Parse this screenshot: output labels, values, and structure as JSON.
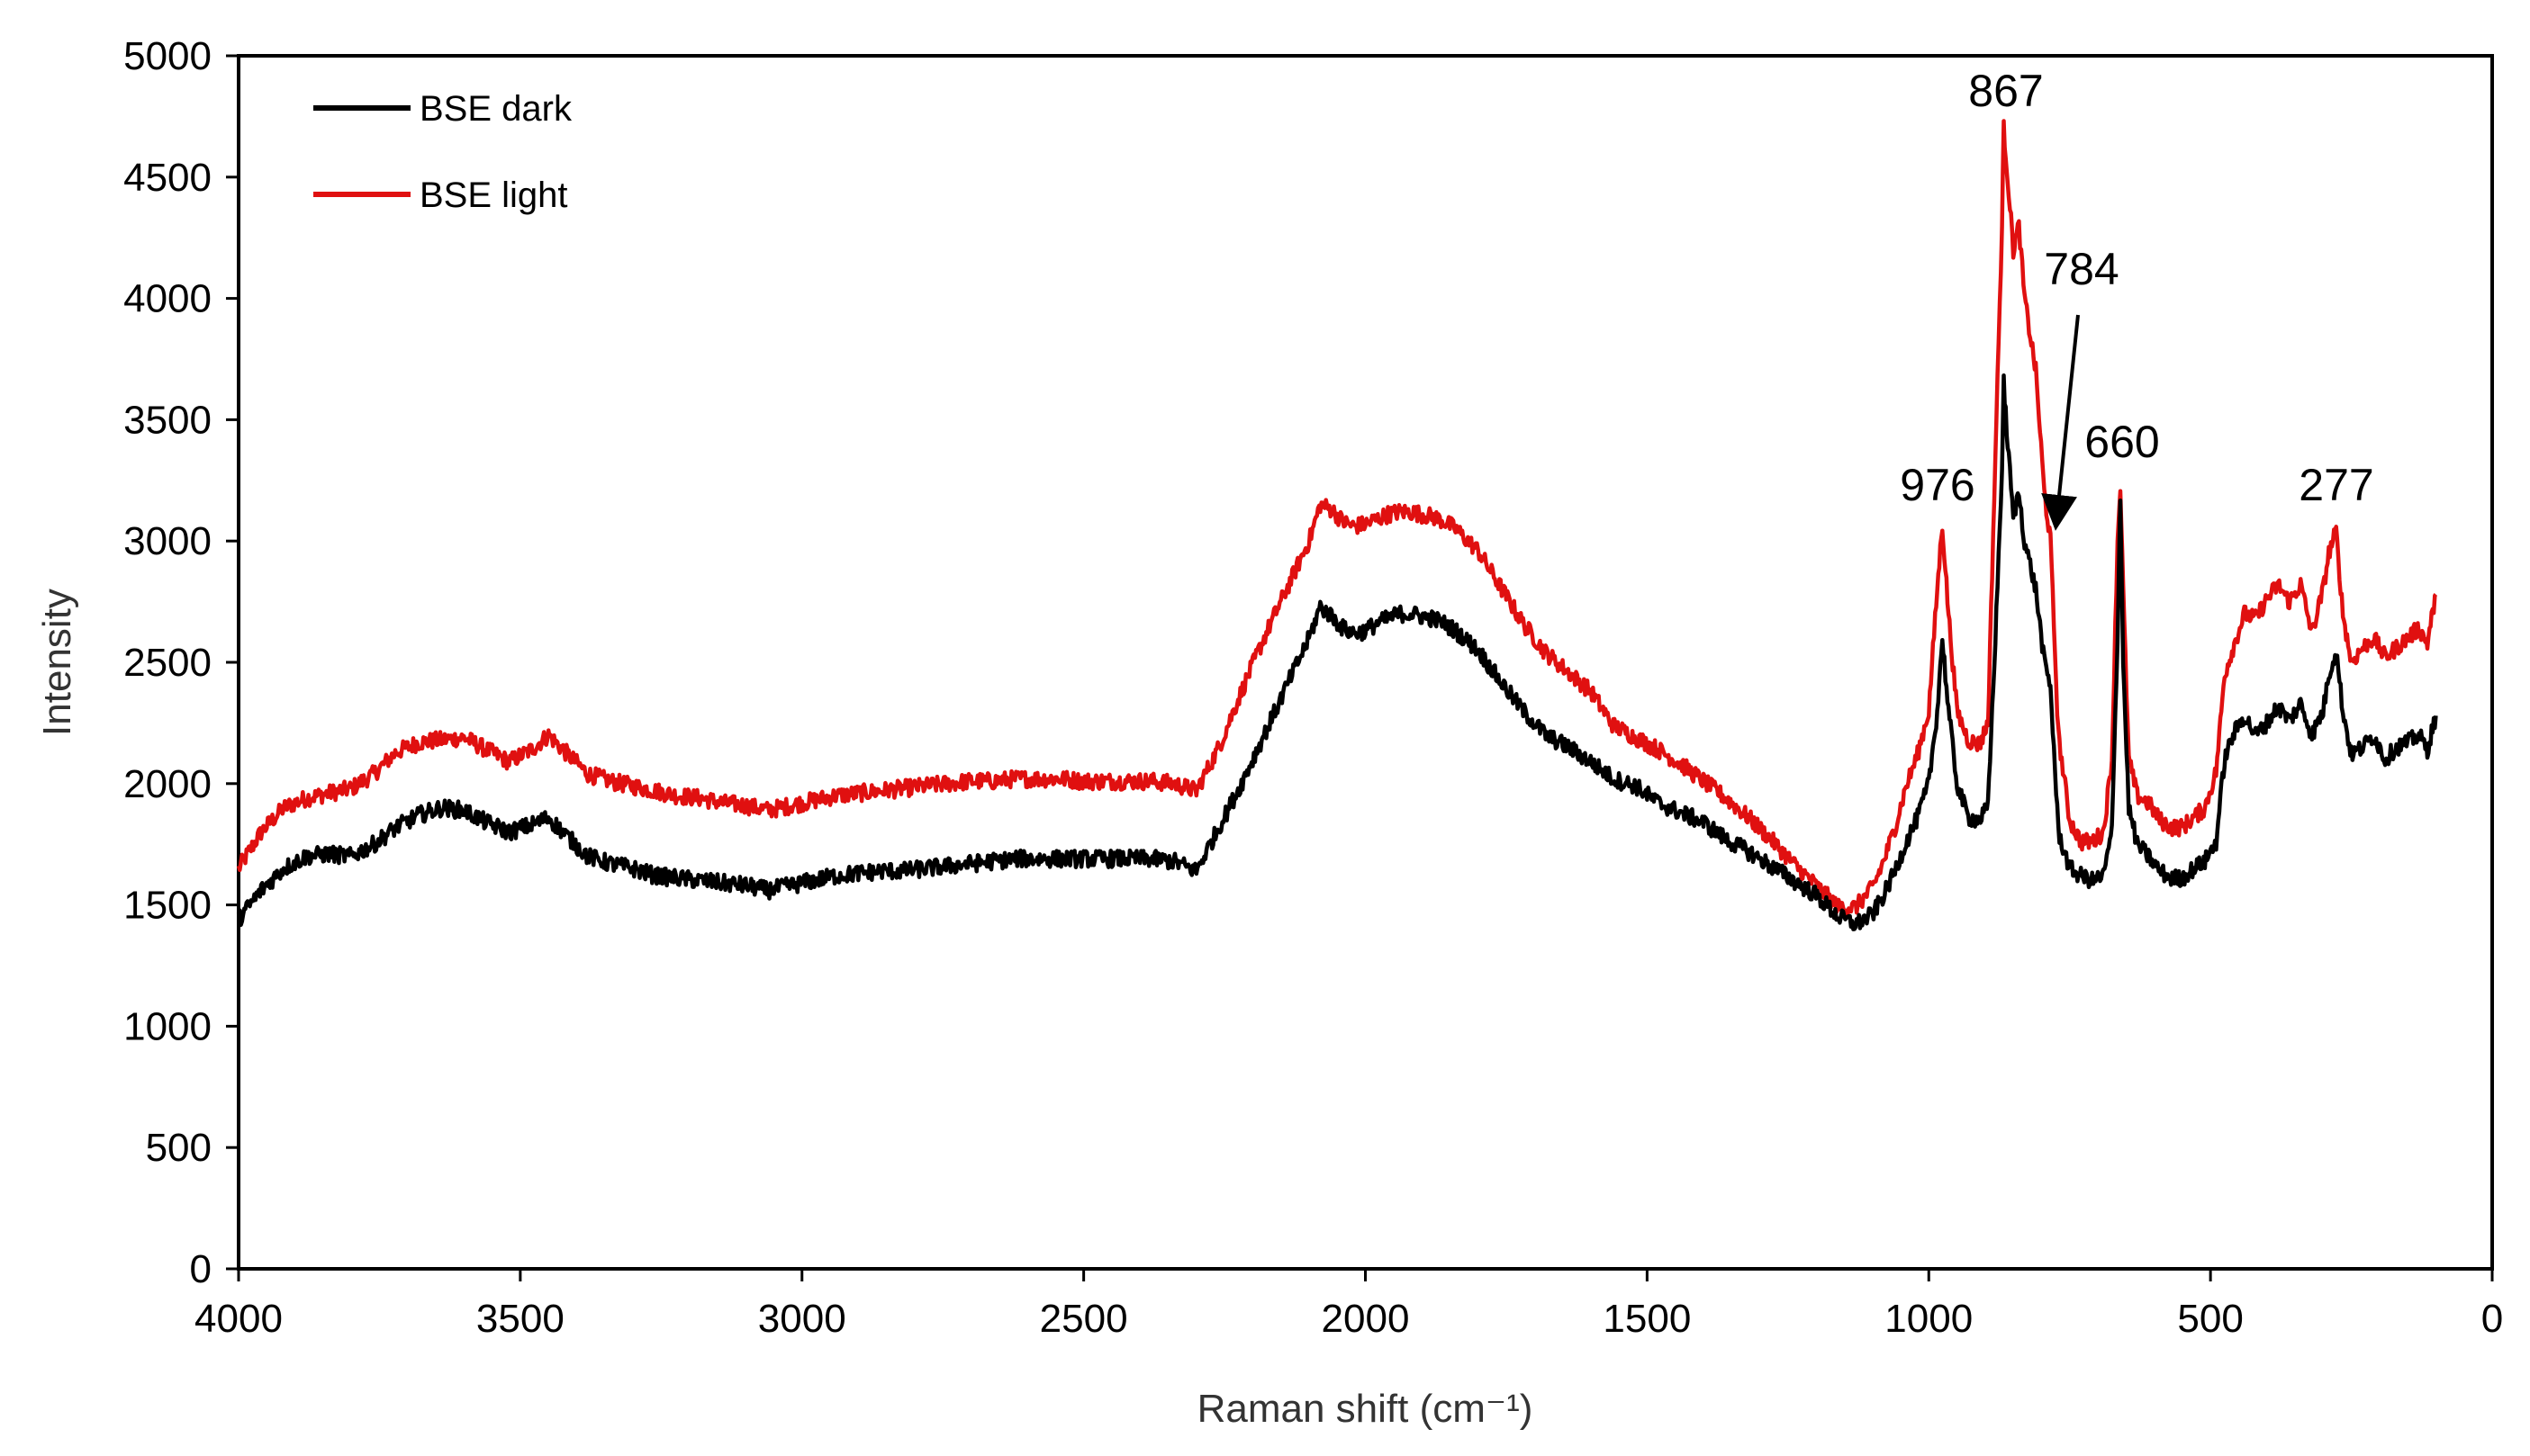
{
  "chart_data": {
    "type": "line",
    "title": "",
    "xlabel": "Raman shift (cm⁻¹)",
    "ylabel": "Intensity",
    "xlim": [
      4000,
      0
    ],
    "ylim": [
      0,
      5000
    ],
    "x_reversed": true,
    "xticks": [
      4000,
      3500,
      3000,
      2500,
      2000,
      1500,
      1000,
      500,
      0
    ],
    "yticks": [
      0,
      500,
      1000,
      1500,
      2000,
      2500,
      3000,
      3500,
      4000,
      4500,
      5000
    ],
    "grid": false,
    "legend_position": "top-left",
    "series": [
      {
        "name": "BSE dark",
        "color": "#000000",
        "points": [
          [
            4000,
            1440
          ],
          [
            3960,
            1560
          ],
          [
            3920,
            1650
          ],
          [
            3880,
            1700
          ],
          [
            3840,
            1710
          ],
          [
            3800,
            1700
          ],
          [
            3760,
            1750
          ],
          [
            3720,
            1820
          ],
          [
            3680,
            1870
          ],
          [
            3640,
            1900
          ],
          [
            3600,
            1890
          ],
          [
            3560,
            1840
          ],
          [
            3520,
            1800
          ],
          [
            3480,
            1830
          ],
          [
            3450,
            1860
          ],
          [
            3420,
            1790
          ],
          [
            3380,
            1700
          ],
          [
            3340,
            1670
          ],
          [
            3300,
            1650
          ],
          [
            3260,
            1620
          ],
          [
            3220,
            1610
          ],
          [
            3180,
            1600
          ],
          [
            3140,
            1590
          ],
          [
            3100,
            1580
          ],
          [
            3060,
            1560
          ],
          [
            3020,
            1580
          ],
          [
            2980,
            1600
          ],
          [
            2940,
            1620
          ],
          [
            2900,
            1630
          ],
          [
            2860,
            1640
          ],
          [
            2820,
            1640
          ],
          [
            2780,
            1650
          ],
          [
            2740,
            1660
          ],
          [
            2700,
            1670
          ],
          [
            2660,
            1680
          ],
          [
            2620,
            1690
          ],
          [
            2580,
            1690
          ],
          [
            2540,
            1690
          ],
          [
            2500,
            1690
          ],
          [
            2460,
            1690
          ],
          [
            2420,
            1690
          ],
          [
            2380,
            1690
          ],
          [
            2340,
            1680
          ],
          [
            2300,
            1640
          ],
          [
            2260,
            1820
          ],
          [
            2220,
            2000
          ],
          [
            2180,
            2200
          ],
          [
            2140,
            2400
          ],
          [
            2100,
            2600
          ],
          [
            2080,
            2730
          ],
          [
            2060,
            2690
          ],
          [
            2040,
            2640
          ],
          [
            2020,
            2620
          ],
          [
            2000,
            2630
          ],
          [
            1980,
            2660
          ],
          [
            1960,
            2680
          ],
          [
            1940,
            2700
          ],
          [
            1920,
            2700
          ],
          [
            1900,
            2690
          ],
          [
            1880,
            2680
          ],
          [
            1860,
            2660
          ],
          [
            1840,
            2630
          ],
          [
            1800,
            2550
          ],
          [
            1760,
            2420
          ],
          [
            1720,
            2300
          ],
          [
            1680,
            2200
          ],
          [
            1640,
            2150
          ],
          [
            1600,
            2090
          ],
          [
            1560,
            2020
          ],
          [
            1520,
            1990
          ],
          [
            1480,
            1920
          ],
          [
            1440,
            1880
          ],
          [
            1400,
            1840
          ],
          [
            1360,
            1770
          ],
          [
            1320,
            1720
          ],
          [
            1280,
            1660
          ],
          [
            1240,
            1600
          ],
          [
            1200,
            1540
          ],
          [
            1160,
            1450
          ],
          [
            1130,
            1420
          ],
          [
            1100,
            1460
          ],
          [
            1080,
            1540
          ],
          [
            1060,
            1640
          ],
          [
            1040,
            1760
          ],
          [
            1020,
            1860
          ],
          [
            1000,
            2000
          ],
          [
            985,
            2300
          ],
          [
            976,
            2600
          ],
          [
            965,
            2300
          ],
          [
            950,
            2000
          ],
          [
            930,
            1860
          ],
          [
            910,
            1850
          ],
          [
            895,
            1900
          ],
          [
            880,
            2700
          ],
          [
            870,
            3300
          ],
          [
            867,
            3650
          ],
          [
            860,
            3400
          ],
          [
            850,
            3100
          ],
          [
            840,
            3200
          ],
          [
            830,
            3000
          ],
          [
            810,
            2800
          ],
          [
            795,
            2500
          ],
          [
            784,
            2400
          ],
          [
            770,
            1800
          ],
          [
            750,
            1650
          ],
          [
            730,
            1620
          ],
          [
            710,
            1600
          ],
          [
            690,
            1620
          ],
          [
            675,
            1800
          ],
          [
            665,
            2600
          ],
          [
            660,
            3200
          ],
          [
            655,
            2500
          ],
          [
            645,
            1900
          ],
          [
            630,
            1750
          ],
          [
            610,
            1700
          ],
          [
            590,
            1640
          ],
          [
            570,
            1610
          ],
          [
            550,
            1610
          ],
          [
            530,
            1650
          ],
          [
            510,
            1680
          ],
          [
            490,
            1760
          ],
          [
            475,
            2100
          ],
          [
            460,
            2200
          ],
          [
            440,
            2280
          ],
          [
            420,
            2200
          ],
          [
            400,
            2250
          ],
          [
            380,
            2320
          ],
          [
            360,
            2260
          ],
          [
            340,
            2330
          ],
          [
            320,
            2200
          ],
          [
            300,
            2300
          ],
          [
            290,
            2450
          ],
          [
            277,
            2550
          ],
          [
            265,
            2300
          ],
          [
            250,
            2120
          ],
          [
            230,
            2150
          ],
          [
            210,
            2200
          ],
          [
            190,
            2100
          ],
          [
            170,
            2150
          ],
          [
            150,
            2170
          ],
          [
            130,
            2200
          ],
          [
            115,
            2140
          ],
          [
            100,
            2280
          ]
        ]
      },
      {
        "name": "BSE light",
        "color": "#e01010",
        "points": [
          [
            4000,
            1650
          ],
          [
            3960,
            1800
          ],
          [
            3920,
            1900
          ],
          [
            3880,
            1940
          ],
          [
            3840,
            1960
          ],
          [
            3800,
            1980
          ],
          [
            3760,
            2040
          ],
          [
            3720,
            2130
          ],
          [
            3680,
            2170
          ],
          [
            3640,
            2180
          ],
          [
            3600,
            2190
          ],
          [
            3560,
            2140
          ],
          [
            3520,
            2090
          ],
          [
            3480,
            2140
          ],
          [
            3450,
            2200
          ],
          [
            3420,
            2130
          ],
          [
            3380,
            2040
          ],
          [
            3340,
            2010
          ],
          [
            3300,
            1990
          ],
          [
            3260,
            1970
          ],
          [
            3220,
            1950
          ],
          [
            3180,
            1940
          ],
          [
            3140,
            1920
          ],
          [
            3100,
            1910
          ],
          [
            3060,
            1890
          ],
          [
            3020,
            1910
          ],
          [
            2980,
            1930
          ],
          [
            2940,
            1950
          ],
          [
            2900,
            1960
          ],
          [
            2860,
            1970
          ],
          [
            2820,
            1980
          ],
          [
            2780,
            1990
          ],
          [
            2740,
            2000
          ],
          [
            2700,
            2010
          ],
          [
            2660,
            2010
          ],
          [
            2620,
            2020
          ],
          [
            2580,
            2020
          ],
          [
            2540,
            2020
          ],
          [
            2500,
            2010
          ],
          [
            2460,
            2010
          ],
          [
            2420,
            2010
          ],
          [
            2380,
            2010
          ],
          [
            2340,
            2000
          ],
          [
            2300,
            1970
          ],
          [
            2260,
            2150
          ],
          [
            2220,
            2380
          ],
          [
            2180,
            2600
          ],
          [
            2140,
            2800
          ],
          [
            2100,
            3000
          ],
          [
            2080,
            3150
          ],
          [
            2060,
            3130
          ],
          [
            2040,
            3080
          ],
          [
            2020,
            3060
          ],
          [
            2000,
            3070
          ],
          [
            1980,
            3090
          ],
          [
            1960,
            3110
          ],
          [
            1940,
            3120
          ],
          [
            1920,
            3120
          ],
          [
            1900,
            3110
          ],
          [
            1880,
            3100
          ],
          [
            1860,
            3080
          ],
          [
            1840,
            3050
          ],
          [
            1800,
            2960
          ],
          [
            1760,
            2810
          ],
          [
            1720,
            2660
          ],
          [
            1680,
            2540
          ],
          [
            1640,
            2460
          ],
          [
            1600,
            2380
          ],
          [
            1560,
            2240
          ],
          [
            1520,
            2190
          ],
          [
            1480,
            2140
          ],
          [
            1440,
            2080
          ],
          [
            1400,
            2010
          ],
          [
            1360,
            1940
          ],
          [
            1320,
            1860
          ],
          [
            1280,
            1770
          ],
          [
            1240,
            1670
          ],
          [
            1200,
            1580
          ],
          [
            1160,
            1490
          ],
          [
            1130,
            1490
          ],
          [
            1100,
            1570
          ],
          [
            1080,
            1680
          ],
          [
            1060,
            1820
          ],
          [
            1040,
            1990
          ],
          [
            1020,
            2120
          ],
          [
            1000,
            2300
          ],
          [
            985,
            2800
          ],
          [
            976,
            3070
          ],
          [
            965,
            2700
          ],
          [
            950,
            2300
          ],
          [
            930,
            2180
          ],
          [
            910,
            2160
          ],
          [
            895,
            2250
          ],
          [
            880,
            3500
          ],
          [
            870,
            4300
          ],
          [
            867,
            4700
          ],
          [
            860,
            4500
          ],
          [
            850,
            4200
          ],
          [
            840,
            4300
          ],
          [
            830,
            4000
          ],
          [
            810,
            3700
          ],
          [
            795,
            3200
          ],
          [
            784,
            3000
          ],
          [
            770,
            2200
          ],
          [
            750,
            1850
          ],
          [
            730,
            1760
          ],
          [
            710,
            1760
          ],
          [
            690,
            1800
          ],
          [
            675,
            2100
          ],
          [
            665,
            3000
          ],
          [
            660,
            3230
          ],
          [
            655,
            2800
          ],
          [
            645,
            2100
          ],
          [
            630,
            1950
          ],
          [
            610,
            1920
          ],
          [
            590,
            1850
          ],
          [
            570,
            1820
          ],
          [
            550,
            1820
          ],
          [
            530,
            1860
          ],
          [
            510,
            1900
          ],
          [
            490,
            2050
          ],
          [
            475,
            2450
          ],
          [
            460,
            2560
          ],
          [
            440,
            2700
          ],
          [
            420,
            2680
          ],
          [
            400,
            2760
          ],
          [
            380,
            2820
          ],
          [
            360,
            2750
          ],
          [
            340,
            2820
          ],
          [
            320,
            2620
          ],
          [
            300,
            2800
          ],
          [
            290,
            2950
          ],
          [
            277,
            3040
          ],
          [
            265,
            2700
          ],
          [
            250,
            2500
          ],
          [
            230,
            2560
          ],
          [
            210,
            2600
          ],
          [
            190,
            2520
          ],
          [
            170,
            2560
          ],
          [
            150,
            2600
          ],
          [
            130,
            2640
          ],
          [
            115,
            2580
          ],
          [
            100,
            2780
          ]
        ]
      }
    ],
    "annotations": [
      {
        "label": "867",
        "x": 867,
        "y": 4700
      },
      {
        "label": "784",
        "x": 784,
        "y": 3000,
        "arrow": true
      },
      {
        "label": "976",
        "x": 976,
        "y": 3070
      },
      {
        "label": "660",
        "x": 660,
        "y": 3230
      },
      {
        "label": "277",
        "x": 277,
        "y": 3040
      }
    ]
  }
}
